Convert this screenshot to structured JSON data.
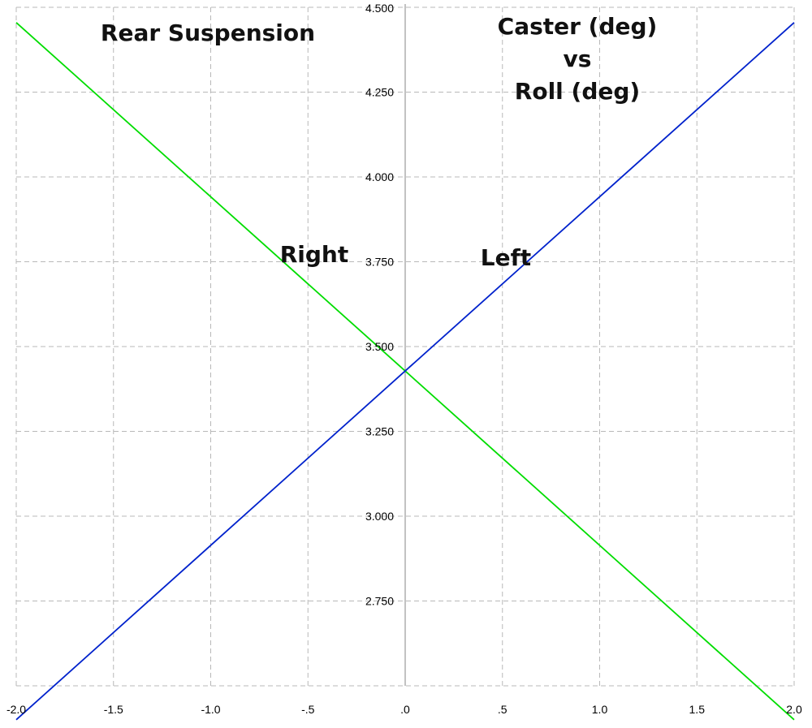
{
  "chart_data": {
    "type": "line",
    "title_lines": [
      "Caster (deg)",
      "vs",
      "Roll (deg)"
    ],
    "subtitle": "Rear Suspension",
    "xlim": [
      -2.0,
      2.0
    ],
    "ylim": [
      2.5,
      4.5
    ],
    "x_ticks": [
      -2.0,
      -1.5,
      -1.0,
      -0.5,
      0.0,
      0.5,
      1.0,
      1.5,
      2.0
    ],
    "x_tick_labels": [
      "-2.0",
      "-1.5",
      "-1.0",
      "-.5",
      ".0",
      ".5",
      "1.0",
      "1.5",
      "2.0"
    ],
    "y_ticks": [
      2.75,
      3.0,
      3.25,
      3.5,
      3.75,
      4.0,
      4.25,
      4.5
    ],
    "y_tick_labels": [
      "2.750",
      "3.000",
      "3.250",
      "3.500",
      "3.750",
      "4.000",
      "4.250",
      "4.500"
    ],
    "grid": true,
    "series": [
      {
        "name": "Right",
        "color": "#00dd00",
        "x": [
          -2.0,
          0.0,
          2.0
        ],
        "y": [
          4.455,
          3.428,
          2.4
        ]
      },
      {
        "name": "Left",
        "color": "#0022cc",
        "x": [
          -2.0,
          0.0,
          2.0
        ],
        "y": [
          2.4,
          3.428,
          4.455
        ]
      }
    ]
  }
}
